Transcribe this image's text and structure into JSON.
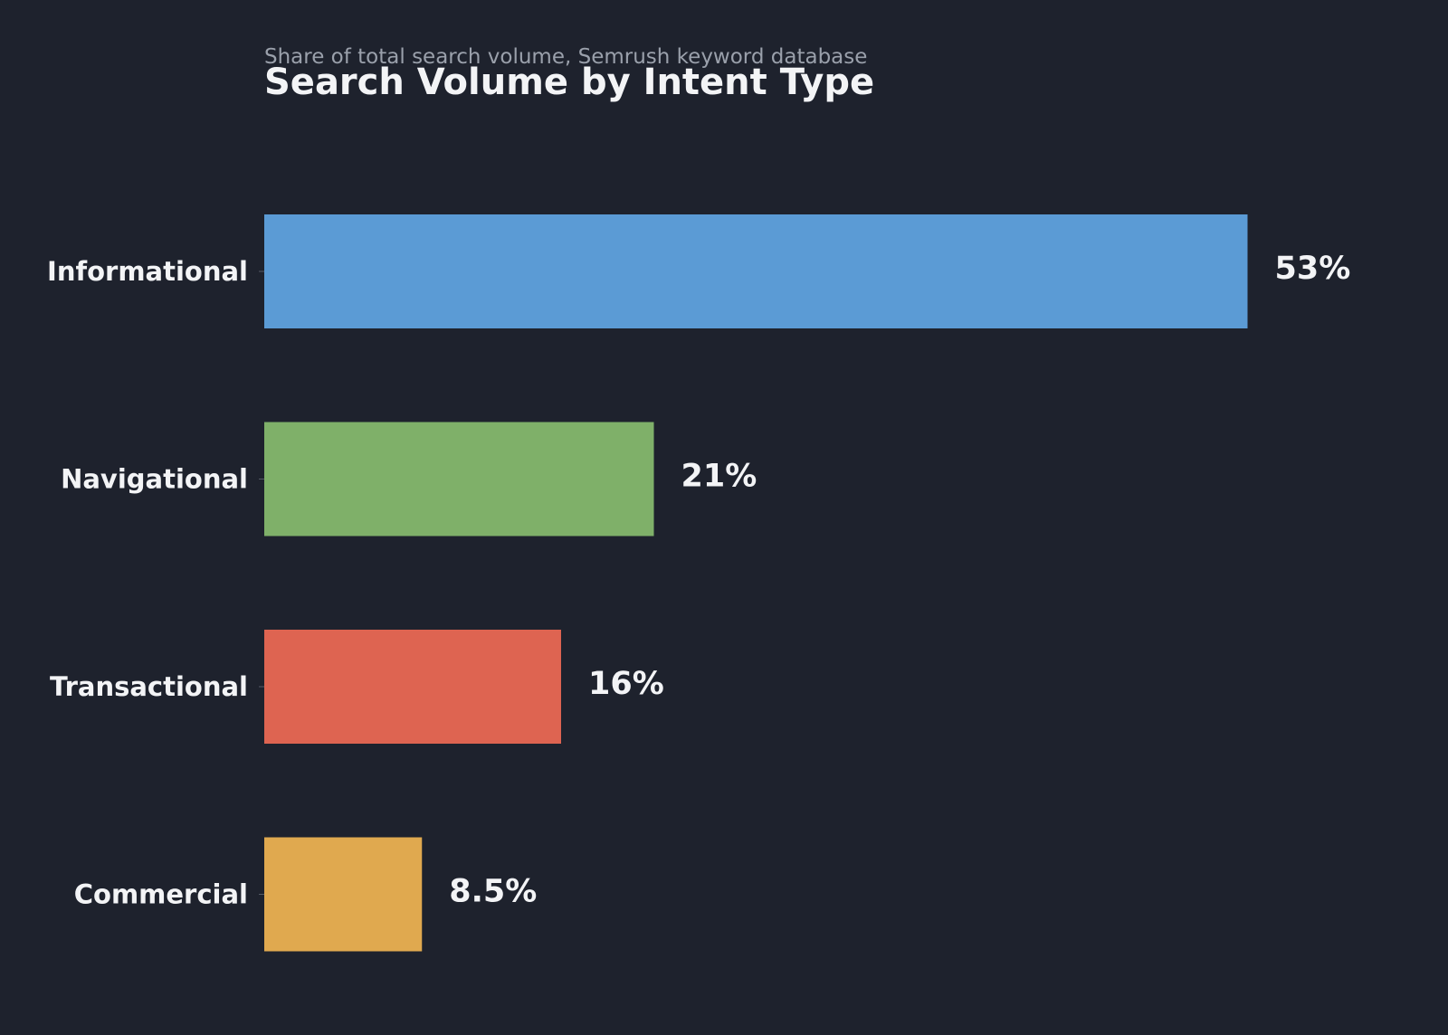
{
  "chart_data": {
    "type": "bar",
    "orientation": "horizontal",
    "title": "Search Volume by Intent Type",
    "subtitle": "Share of total search volume, Semrush keyword database",
    "categories": [
      "Informational",
      "Navigational",
      "Transactional",
      "Commercial"
    ],
    "values": [
      53,
      21,
      16,
      8.5
    ],
    "value_labels": [
      "53%",
      "21%",
      "16%",
      "8.5%"
    ],
    "colors": [
      "#5b9bd5",
      "#7fb069",
      "#de6451",
      "#e0a94f"
    ],
    "xlim": [
      0,
      60
    ],
    "grid": false,
    "legend": "none"
  },
  "theme": {
    "background": "#1e222d",
    "text": "#f3f4f6",
    "subtext": "#9aa0ab"
  }
}
